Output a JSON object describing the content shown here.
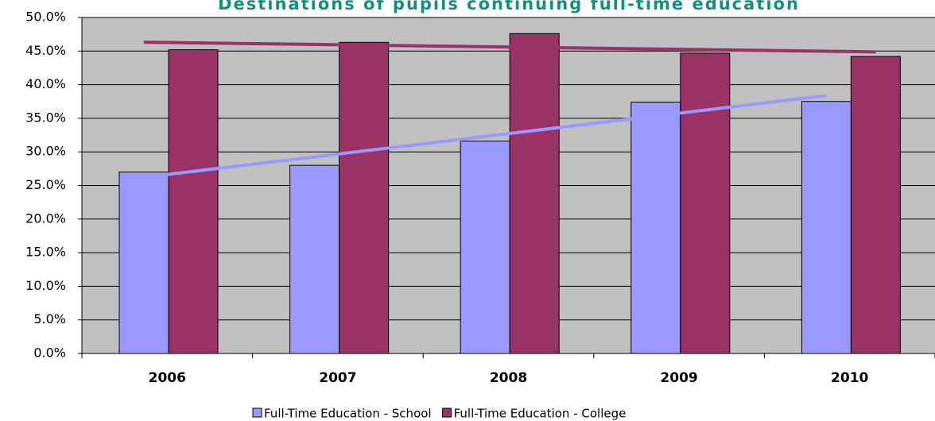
{
  "chart_data": {
    "type": "bar",
    "title": "Destinations of pupils continuing full-time education",
    "categories": [
      "2006",
      "2007",
      "2008",
      "2009",
      "2010"
    ],
    "series": [
      {
        "name": "Full-Time Education - School",
        "color": "#9999ff",
        "values": [
          27.0,
          28.0,
          31.6,
          37.4,
          37.5
        ]
      },
      {
        "name": "Full-Time Education - College",
        "color": "#993366",
        "values": [
          45.2,
          46.3,
          47.6,
          44.7,
          44.2
        ]
      }
    ],
    "ylim": [
      0,
      50
    ],
    "yticks": [
      {
        "value": 0,
        "label": "0.0%"
      },
      {
        "value": 5,
        "label": "5.0%"
      },
      {
        "value": 10,
        "label": "10.0%"
      },
      {
        "value": 15,
        "label": "15.0%"
      },
      {
        "value": 20,
        "label": "20.0%"
      },
      {
        "value": 25,
        "label": "25.0%"
      },
      {
        "value": 30,
        "label": "30.0%"
      },
      {
        "value": 35,
        "label": "35.0%"
      },
      {
        "value": 40,
        "label": "40.0%"
      },
      {
        "value": 45,
        "label": "45.0%"
      },
      {
        "value": 50,
        "label": "50.0%"
      }
    ],
    "grid": true,
    "trendline": true,
    "legend": "bottom",
    "plot_background": "#c0c0c0"
  }
}
